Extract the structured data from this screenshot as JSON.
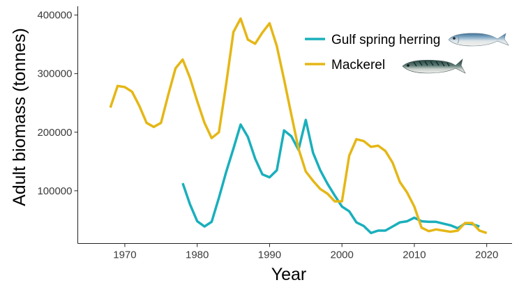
{
  "chart_data": {
    "type": "line",
    "title": "",
    "xlabel": "Year",
    "ylabel": "Adult biomass (tonnes)",
    "xlim": [
      1963.5,
      2023.5
    ],
    "ylim": [
      10000,
      415000
    ],
    "x_ticks": [
      1970,
      1980,
      1990,
      2000,
      2010,
      2020
    ],
    "x_tick_labels": [
      "1970",
      "1980",
      "1990",
      "2000",
      "2010",
      "2020"
    ],
    "y_ticks": [
      100000,
      200000,
      300000,
      400000
    ],
    "y_tick_labels": [
      "100000",
      "200000",
      "300000",
      "400000"
    ],
    "grid": false,
    "legend_position": "top-right",
    "series": [
      {
        "name": "Gulf spring herring",
        "color": "#1AAFBC",
        "icon": "herring-fish-icon",
        "x": [
          1978,
          1979,
          1980,
          1981,
          1982,
          1983,
          1984,
          1985,
          1986,
          1987,
          1988,
          1989,
          1990,
          1991,
          1992,
          1993,
          1994,
          1995,
          1996,
          1997,
          1998,
          1999,
          2000,
          2001,
          2002,
          2003,
          2004,
          2005,
          2006,
          2007,
          2008,
          2009,
          2010,
          2011,
          2012,
          2013,
          2014,
          2015,
          2016,
          2017,
          2018,
          2019
        ],
        "y": [
          113000,
          77000,
          48000,
          39000,
          47000,
          88000,
          132000,
          172000,
          213000,
          192000,
          155000,
          128000,
          123000,
          135000,
          203000,
          193000,
          170000,
          221000,
          165000,
          135000,
          112000,
          92000,
          73000,
          65000,
          46000,
          40000,
          28000,
          32000,
          32000,
          39000,
          46000,
          48000,
          54000,
          48000,
          47000,
          47000,
          44000,
          41000,
          36000,
          44000,
          43000,
          39000
        ]
      },
      {
        "name": "Mackerel",
        "color": "#E5B716",
        "icon": "mackerel-fish-icon",
        "x": [
          1968,
          1969,
          1970,
          1971,
          1972,
          1973,
          1974,
          1975,
          1976,
          1977,
          1978,
          1979,
          1980,
          1981,
          1982,
          1983,
          1984,
          1985,
          1986,
          1987,
          1988,
          1989,
          1990,
          1991,
          1992,
          1993,
          1994,
          1995,
          1996,
          1997,
          1998,
          1999,
          2000,
          2001,
          2002,
          2003,
          2004,
          2005,
          2006,
          2007,
          2008,
          2009,
          2010,
          2011,
          2012,
          2013,
          2014,
          2015,
          2016,
          2017,
          2018,
          2019,
          2020
        ],
        "y": [
          242000,
          279000,
          277000,
          269000,
          245000,
          216000,
          209000,
          216000,
          264000,
          309000,
          324000,
          293000,
          253000,
          216000,
          190000,
          200000,
          282000,
          371000,
          394000,
          358000,
          351000,
          370000,
          386000,
          347000,
          290000,
          230000,
          172000,
          133000,
          117000,
          103000,
          95000,
          82000,
          82000,
          160000,
          188000,
          185000,
          175000,
          177000,
          168000,
          148000,
          115000,
          97000,
          73000,
          37000,
          31000,
          34000,
          32000,
          30000,
          32000,
          45000,
          45000,
          32000,
          28000
        ]
      }
    ]
  }
}
